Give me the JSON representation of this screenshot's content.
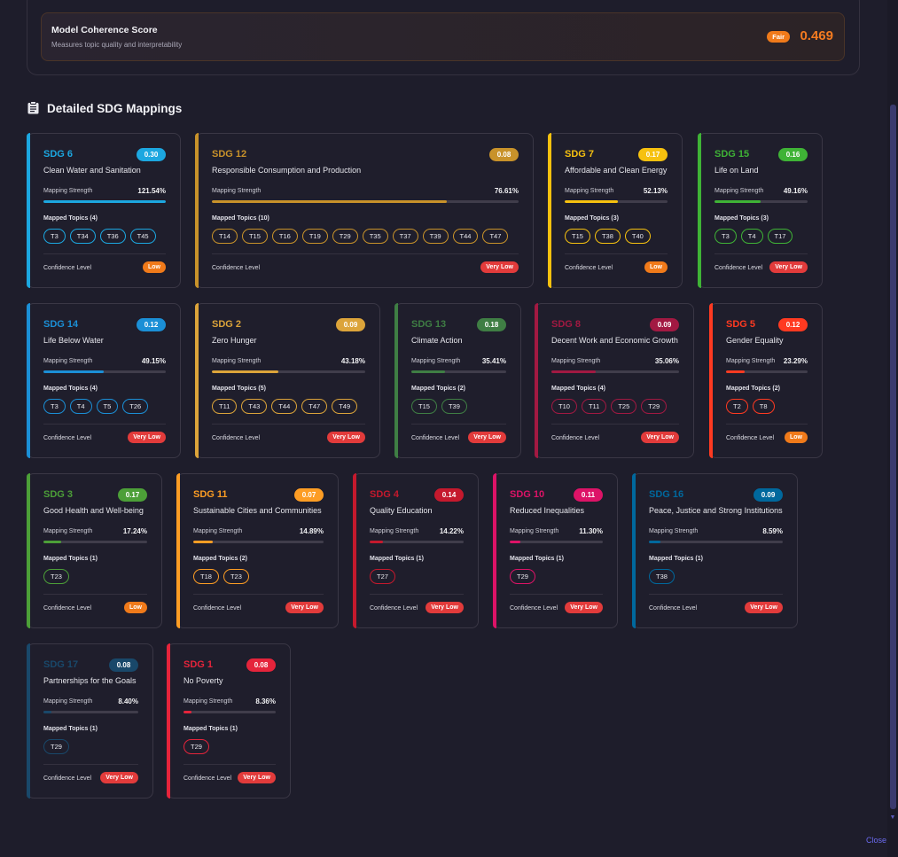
{
  "score": {
    "title": "Model Coherence Score",
    "subtitle": "Measures topic quality and interpretability",
    "badge": "Fair",
    "value": "0.469"
  },
  "section": {
    "title": "Detailed SDG Mappings",
    "icon": "clipboard-icon"
  },
  "labels": {
    "mapping_strength": "Mapping Strength",
    "confidence_level": "Confidence Level"
  },
  "cards": [
    {
      "sdg": "SDG 6",
      "name": "Clean Water and Sanitation",
      "score": "0.30",
      "strength": "121.54%",
      "strength_pct": 100,
      "topics_label": "Mapped Topics (4)",
      "topics": [
        "T3",
        "T34",
        "T36",
        "T45"
      ],
      "confidence": "Low",
      "color": "#1ca7e0"
    },
    {
      "sdg": "SDG 12",
      "name": "Responsible Consumption and Production",
      "score": "0.08",
      "strength": "76.61%",
      "strength_pct": 76.61,
      "topics_label": "Mapped Topics (10)",
      "topics": [
        "T14",
        "T15",
        "T16",
        "T19",
        "T29",
        "T35",
        "T37",
        "T39",
        "T44",
        "T47"
      ],
      "confidence": "Very Low",
      "color": "#c8922a"
    },
    {
      "sdg": "SDG 7",
      "name": "Affordable and Clean Energy",
      "score": "0.17",
      "strength": "52.13%",
      "strength_pct": 52.13,
      "topics_label": "Mapped Topics (3)",
      "topics": [
        "T15",
        "T38",
        "T40"
      ],
      "confidence": "Low",
      "color": "#f6c10f"
    },
    {
      "sdg": "SDG 15",
      "name": "Life on Land",
      "score": "0.16",
      "strength": "49.16%",
      "strength_pct": 49.16,
      "topics_label": "Mapped Topics (3)",
      "topics": [
        "T3",
        "T4",
        "T17"
      ],
      "confidence": "Very Low",
      "color": "#3fb336"
    },
    {
      "sdg": "SDG 14",
      "name": "Life Below Water",
      "score": "0.12",
      "strength": "49.15%",
      "strength_pct": 49.15,
      "topics_label": "Mapped Topics (4)",
      "topics": [
        "T3",
        "T4",
        "T5",
        "T26"
      ],
      "confidence": "Very Low",
      "color": "#1b8fd6"
    },
    {
      "sdg": "SDG 2",
      "name": "Zero Hunger",
      "score": "0.09",
      "strength": "43.18%",
      "strength_pct": 43.18,
      "topics_label": "Mapped Topics (5)",
      "topics": [
        "T11",
        "T43",
        "T44",
        "T47",
        "T49"
      ],
      "confidence": "Very Low",
      "color": "#dca43a"
    },
    {
      "sdg": "SDG 13",
      "name": "Climate Action",
      "score": "0.18",
      "strength": "35.41%",
      "strength_pct": 35.41,
      "topics_label": "Mapped Topics (2)",
      "topics": [
        "T15",
        "T39"
      ],
      "confidence": "Very Low",
      "color": "#3f7e44"
    },
    {
      "sdg": "SDG 8",
      "name": "Decent Work and Economic Growth",
      "score": "0.09",
      "strength": "35.06%",
      "strength_pct": 35.06,
      "topics_label": "Mapped Topics (4)",
      "topics": [
        "T10",
        "T11",
        "T25",
        "T29"
      ],
      "confidence": "Very Low",
      "color": "#a21942"
    },
    {
      "sdg": "SDG 5",
      "name": "Gender Equality",
      "score": "0.12",
      "strength": "23.29%",
      "strength_pct": 23.29,
      "topics_label": "Mapped Topics (2)",
      "topics": [
        "T2",
        "T8"
      ],
      "confidence": "Low",
      "color": "#ff3a21"
    },
    {
      "sdg": "SDG 3",
      "name": "Good Health and Well-being",
      "score": "0.17",
      "strength": "17.24%",
      "strength_pct": 17.24,
      "topics_label": "Mapped Topics (1)",
      "topics": [
        "T23"
      ],
      "confidence": "Low",
      "color": "#4c9f38"
    },
    {
      "sdg": "SDG 11",
      "name": "Sustainable Cities and Communities",
      "score": "0.07",
      "strength": "14.89%",
      "strength_pct": 14.89,
      "topics_label": "Mapped Topics (2)",
      "topics": [
        "T18",
        "T23"
      ],
      "confidence": "Very Low",
      "color": "#fd9d24"
    },
    {
      "sdg": "SDG 4",
      "name": "Quality Education",
      "score": "0.14",
      "strength": "14.22%",
      "strength_pct": 14.22,
      "topics_label": "Mapped Topics (1)",
      "topics": [
        "T27"
      ],
      "confidence": "Very Low",
      "color": "#c5192d"
    },
    {
      "sdg": "SDG 10",
      "name": "Reduced Inequalities",
      "score": "0.11",
      "strength": "11.30%",
      "strength_pct": 11.3,
      "topics_label": "Mapped Topics (1)",
      "topics": [
        "T29"
      ],
      "confidence": "Very Low",
      "color": "#dd1367"
    },
    {
      "sdg": "SDG 16",
      "name": "Peace, Justice and Strong Institutions",
      "score": "0.09",
      "strength": "8.59%",
      "strength_pct": 8.59,
      "topics_label": "Mapped Topics (1)",
      "topics": [
        "T38"
      ],
      "confidence": "Very Low",
      "color": "#00689d"
    },
    {
      "sdg": "SDG 17",
      "name": "Partnerships for the Goals",
      "score": "0.08",
      "strength": "8.40%",
      "strength_pct": 8.4,
      "topics_label": "Mapped Topics (1)",
      "topics": [
        "T29"
      ],
      "confidence": "Very Low",
      "color": "#19486a"
    },
    {
      "sdg": "SDG 1",
      "name": "No Poverty",
      "score": "0.08",
      "strength": "8.36%",
      "strength_pct": 8.36,
      "topics_label": "Mapped Topics (1)",
      "topics": [
        "T29"
      ],
      "confidence": "Very Low",
      "color": "#e5243b"
    }
  ],
  "confidence_colors": {
    "Low": "#f07a1a",
    "Very Low": "#e23b3b"
  },
  "close_label": "Close"
}
